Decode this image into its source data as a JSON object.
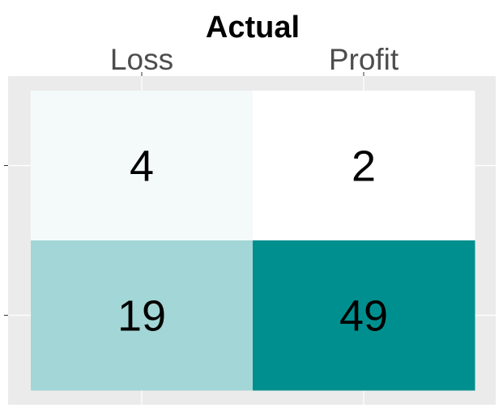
{
  "chart_data": {
    "type": "heatmap",
    "title": "",
    "xlabel": "Actual",
    "ylabel": "",
    "x_categories": [
      "Loss",
      "Profit"
    ],
    "y_categories": [],
    "values": [
      [
        4,
        2
      ],
      [
        19,
        49
      ]
    ],
    "colors": {
      "low": "#ffffff",
      "high": "#008f8f",
      "panel_background": "#ebebeb",
      "grid": "#ffffff"
    },
    "x_axis_position": "top",
    "legend": "none"
  }
}
